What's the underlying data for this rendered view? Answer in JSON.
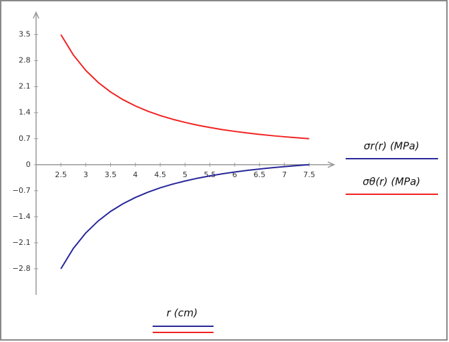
{
  "chart_data": {
    "type": "line",
    "x_label": "r (cm)",
    "x": [
      2.5,
      2.75,
      3,
      3.25,
      3.5,
      3.75,
      4,
      4.25,
      4.5,
      4.75,
      5,
      5.25,
      5.5,
      5.75,
      6,
      6.25,
      6.5,
      6.75,
      7,
      7.25,
      7.5
    ],
    "series": [
      {
        "name": "σr(r)  (MPa)",
        "color": "#27279a",
        "values": [
          -2.8,
          -2.253,
          -1.838,
          -1.514,
          -1.257,
          -1.05,
          -0.881,
          -0.74,
          -0.622,
          -0.523,
          -0.438,
          -0.364,
          -0.301,
          -0.245,
          -0.197,
          -0.154,
          -0.116,
          -0.082,
          -0.052,
          -0.025,
          0
        ]
      },
      {
        "name": "σθ(r)  (MPa)",
        "color": "#f22222",
        "values": [
          3.5,
          2.953,
          2.538,
          2.214,
          1.957,
          1.75,
          1.581,
          1.44,
          1.322,
          1.223,
          1.138,
          1.064,
          1.001,
          0.945,
          0.897,
          0.854,
          0.816,
          0.782,
          0.752,
          0.725,
          0.7
        ]
      }
    ],
    "xlim": [
      2,
      8
    ],
    "ylim": [
      -3.5,
      4.1
    ],
    "xticks": [
      2.5,
      3,
      3.5,
      4,
      4.5,
      5,
      5.5,
      6,
      6.5,
      7,
      7.5
    ],
    "yticks": [
      3.5,
      2.8,
      2.1,
      1.4,
      0.7,
      0,
      {
        "value": -0.7,
        "label": "−0.7"
      },
      {
        "value": -1.4,
        "label": "−1.4"
      },
      {
        "value": -2.1,
        "label": "−2.1"
      },
      {
        "value": -2.8,
        "label": "−2.8"
      }
    ],
    "grid": false
  }
}
